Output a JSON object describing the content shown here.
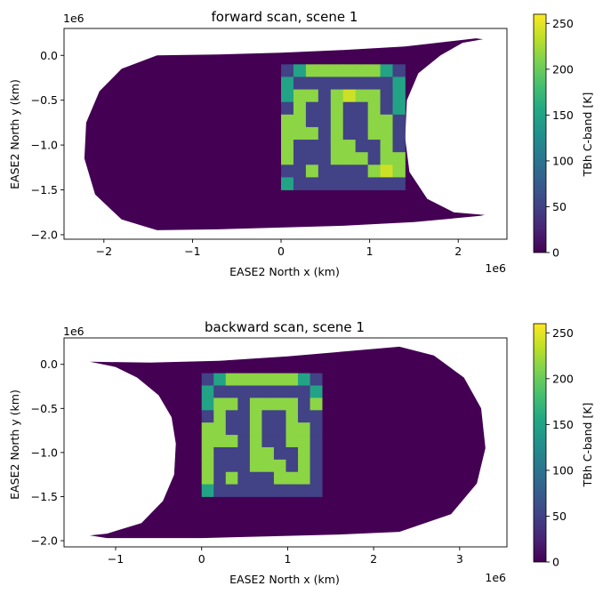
{
  "chart_data": [
    {
      "type": "heatmap",
      "title": "forward scan, scene 1",
      "xlabel": "EASE2 North x (km)",
      "ylabel": "EASE2 North y (km)",
      "x_offset_label": "1e6",
      "y_offset_label": "1e6",
      "xlim": [
        -2.45,
        2.55
      ],
      "ylim": [
        -2.05,
        0.3
      ],
      "x_ticks": [
        -2,
        -1,
        0,
        1,
        2
      ],
      "x_tick_labels": [
        "−2",
        "−1",
        "0",
        "1",
        "2"
      ],
      "y_ticks": [
        0.0,
        -0.5,
        -1.0,
        -1.5,
        -2.0
      ],
      "y_tick_labels": [
        "0.0",
        "−0.5",
        "−1.0",
        "−1.5",
        "−2.0"
      ],
      "swath_outline": [
        [
          -1.4,
          0
        ],
        [
          -0.7,
          0.01
        ],
        [
          0,
          0.03
        ],
        [
          0.7,
          0.06
        ],
        [
          1.4,
          0.1
        ],
        [
          2.2,
          0.19
        ],
        [
          2.28,
          0.18
        ],
        [
          2.05,
          0.14
        ],
        [
          1.8,
          0
        ],
        [
          1.55,
          -0.2
        ],
        [
          1.42,
          -0.5
        ],
        [
          1.4,
          -0.92
        ],
        [
          1.45,
          -1.3
        ],
        [
          1.65,
          -1.6
        ],
        [
          1.95,
          -1.75
        ],
        [
          2.3,
          -1.78
        ],
        [
          2.25,
          -1.79
        ],
        [
          1.5,
          -1.86
        ],
        [
          0.7,
          -1.9
        ],
        [
          0,
          -1.92
        ],
        [
          -0.7,
          -1.94
        ],
        [
          -1.4,
          -1.95
        ],
        [
          -1.8,
          -1.83
        ],
        [
          -2.1,
          -1.55
        ],
        [
          -2.22,
          -1.15
        ],
        [
          -2.2,
          -0.75
        ],
        [
          -2.05,
          -0.4
        ],
        [
          -1.8,
          -0.15
        ]
      ],
      "scene_box": {
        "x": [
          0,
          1.4
        ],
        "y": [
          -1.5,
          -0.1
        ]
      },
      "grid": {
        "rows": 10,
        "cols": 10
      },
      "scene_values": [
        [
          50,
          150,
          215,
          215,
          215,
          215,
          215,
          215,
          150,
          50
        ],
        [
          150,
          50,
          50,
          50,
          50,
          50,
          50,
          50,
          50,
          150
        ],
        [
          150,
          215,
          215,
          50,
          215,
          240,
          215,
          215,
          50,
          150
        ],
        [
          50,
          215,
          50,
          50,
          215,
          50,
          50,
          215,
          50,
          150
        ],
        [
          215,
          215,
          50,
          50,
          215,
          50,
          50,
          215,
          215,
          50
        ],
        [
          215,
          215,
          215,
          50,
          215,
          50,
          50,
          215,
          215,
          50
        ],
        [
          215,
          50,
          50,
          50,
          215,
          215,
          50,
          50,
          215,
          50
        ],
        [
          215,
          50,
          50,
          50,
          215,
          215,
          215,
          50,
          215,
          215
        ],
        [
          50,
          50,
          215,
          50,
          50,
          50,
          50,
          215,
          240,
          215
        ],
        [
          150,
          50,
          50,
          50,
          50,
          50,
          50,
          50,
          50,
          50
        ]
      ],
      "outside_value": 0,
      "colorbar": {
        "label": "TBh C-band [K]",
        "range": [
          0,
          260
        ],
        "ticks": [
          0,
          50,
          100,
          150,
          200,
          250
        ],
        "tick_labels": [
          "0",
          "50",
          "100",
          "150",
          "200",
          "250"
        ],
        "colormap": "viridis"
      }
    },
    {
      "type": "heatmap",
      "title": "backward scan, scene 1",
      "xlabel": "EASE2 North x (km)",
      "ylabel": "EASE2 North y (km)",
      "x_offset_label": "1e6",
      "y_offset_label": "1e6",
      "xlim": [
        -1.6,
        3.55
      ],
      "ylim": [
        -2.07,
        0.3
      ],
      "x_ticks": [
        -1,
        0,
        1,
        2,
        3
      ],
      "x_tick_labels": [
        "−1",
        "0",
        "1",
        "2",
        "3"
      ],
      "y_ticks": [
        0.0,
        -0.5,
        -1.0,
        -1.5,
        -2.0
      ],
      "y_tick_labels": [
        "0.0",
        "−0.5",
        "−1.0",
        "−1.5",
        "−2.0"
      ],
      "swath_outline": [
        [
          -1.25,
          0.02
        ],
        [
          -1.3,
          0.03
        ],
        [
          -0.6,
          0.02
        ],
        [
          0.2,
          0.04
        ],
        [
          1,
          0.09
        ],
        [
          1.7,
          0.15
        ],
        [
          2.3,
          0.2
        ],
        [
          2.7,
          0.1
        ],
        [
          3.05,
          -0.15
        ],
        [
          3.25,
          -0.5
        ],
        [
          3.3,
          -0.95
        ],
        [
          3.2,
          -1.35
        ],
        [
          2.9,
          -1.7
        ],
        [
          2.3,
          -1.9
        ],
        [
          1.6,
          -1.93
        ],
        [
          0.8,
          -1.95
        ],
        [
          0,
          -1.97
        ],
        [
          -0.6,
          -1.97
        ],
        [
          -1.1,
          -1.97
        ],
        [
          -1.3,
          -1.94
        ],
        [
          -1.1,
          -1.92
        ],
        [
          -0.7,
          -1.8
        ],
        [
          -0.45,
          -1.55
        ],
        [
          -0.32,
          -1.25
        ],
        [
          -0.3,
          -0.9
        ],
        [
          -0.35,
          -0.6
        ],
        [
          -0.5,
          -0.35
        ],
        [
          -0.75,
          -0.15
        ],
        [
          -1.0,
          -0.03
        ]
      ],
      "scene_box": {
        "x": [
          0,
          1.4
        ],
        "y": [
          -1.5,
          -0.1
        ]
      },
      "grid": {
        "rows": 10,
        "cols": 10
      },
      "scene_values": [
        [
          50,
          150,
          215,
          215,
          215,
          215,
          215,
          215,
          150,
          50
        ],
        [
          150,
          50,
          50,
          50,
          50,
          50,
          50,
          50,
          50,
          150
        ],
        [
          150,
          215,
          215,
          50,
          215,
          215,
          215,
          215,
          50,
          215
        ],
        [
          50,
          215,
          50,
          50,
          215,
          50,
          50,
          215,
          50,
          50
        ],
        [
          215,
          215,
          50,
          50,
          215,
          50,
          50,
          215,
          215,
          50
        ],
        [
          215,
          215,
          215,
          50,
          215,
          50,
          50,
          215,
          215,
          50
        ],
        [
          215,
          50,
          50,
          50,
          215,
          215,
          50,
          50,
          215,
          50
        ],
        [
          215,
          50,
          50,
          50,
          215,
          215,
          215,
          50,
          215,
          50
        ],
        [
          215,
          50,
          215,
          50,
          50,
          50,
          215,
          215,
          215,
          50
        ],
        [
          150,
          50,
          50,
          50,
          50,
          50,
          50,
          50,
          50,
          50
        ]
      ],
      "outside_value": 0,
      "colorbar": {
        "label": "TBh C-band [K]",
        "range": [
          0,
          260
        ],
        "ticks": [
          0,
          50,
          100,
          150,
          200,
          250
        ],
        "tick_labels": [
          "0",
          "50",
          "100",
          "150",
          "200",
          "250"
        ],
        "colormap": "viridis"
      }
    }
  ]
}
